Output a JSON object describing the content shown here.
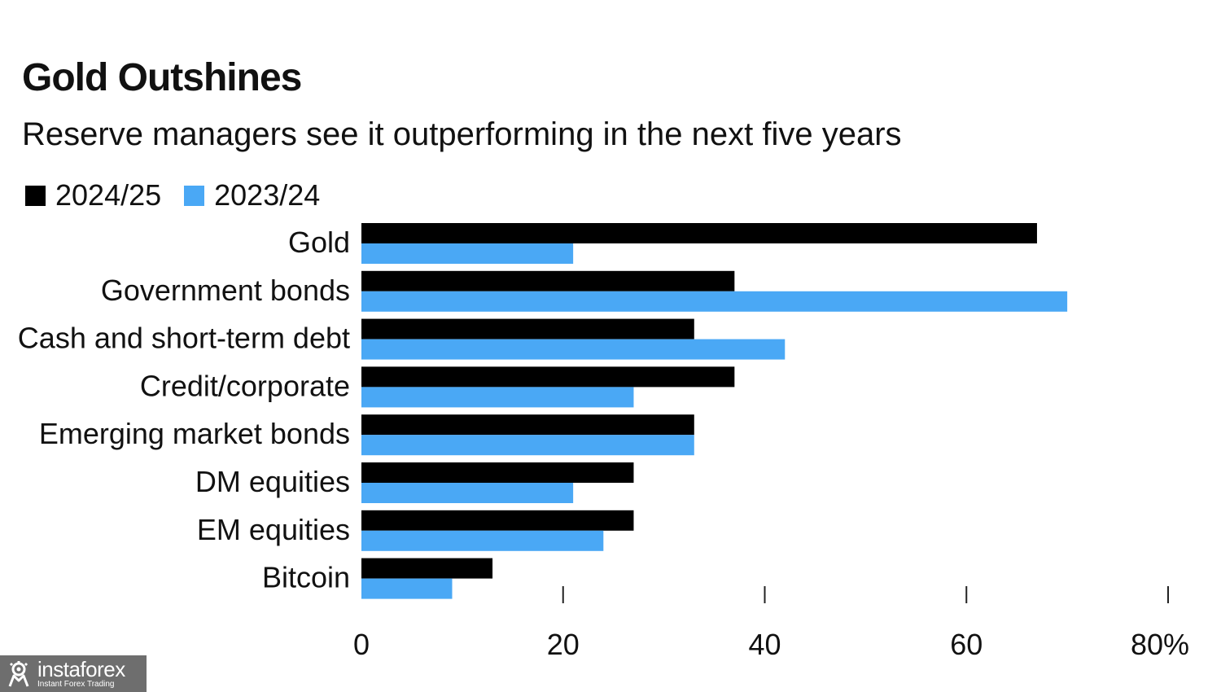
{
  "chart_data": {
    "type": "bar",
    "orientation": "horizontal",
    "title": "Gold Outshines",
    "subtitle": "Reserve managers see it outperforming in the next five years",
    "categories": [
      "Gold",
      "Government bonds",
      "Cash and short-term debt",
      "Credit/corporate",
      "Emerging market bonds",
      "DM equities",
      "EM equities",
      "Bitcoin"
    ],
    "series": [
      {
        "name": "2024/25",
        "color": "#000000",
        "values": [
          67,
          37,
          33,
          37,
          33,
          27,
          27,
          13
        ]
      },
      {
        "name": "2023/24",
        "color": "#4aa8f5",
        "values": [
          21,
          70,
          42,
          27,
          33,
          21,
          24,
          9
        ]
      }
    ],
    "xlim": [
      0,
      80
    ],
    "xticks": [
      0,
      20,
      40,
      60,
      80
    ],
    "xtick_labels": [
      "0",
      "20",
      "40",
      "60",
      "80%"
    ],
    "legend_position": "top-left",
    "grid": false
  },
  "watermark": {
    "name": "instaforex",
    "tagline": "Instant Forex Trading",
    "icon": "instaforex-logo-icon"
  }
}
